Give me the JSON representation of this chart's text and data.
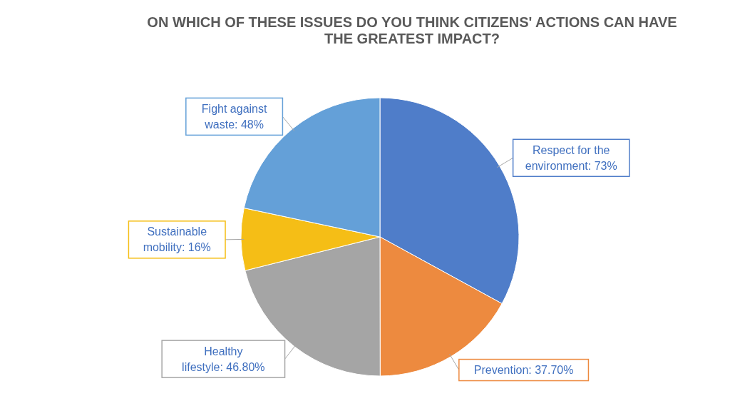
{
  "chart_data": {
    "type": "pie",
    "title": "ON WHICH OF THESE ISSUES DO YOU THINK CITIZENS' ACTIONS CAN HAVE THE GREATEST IMPACT?",
    "categories": [
      "Respect for the environment",
      "Prevention",
      "Healthy lifestyle",
      "Sustainable mobility",
      "Fight against waste"
    ],
    "values": [
      73,
      37.7,
      46.8,
      16,
      48
    ],
    "value_labels": [
      "73%",
      "37.70%",
      "46.80%",
      "16%",
      "48%"
    ],
    "colors": [
      "#4f7dc9",
      "#ed8a3f",
      "#a5a5a5",
      "#f5be16",
      "#64a0d8"
    ]
  }
}
